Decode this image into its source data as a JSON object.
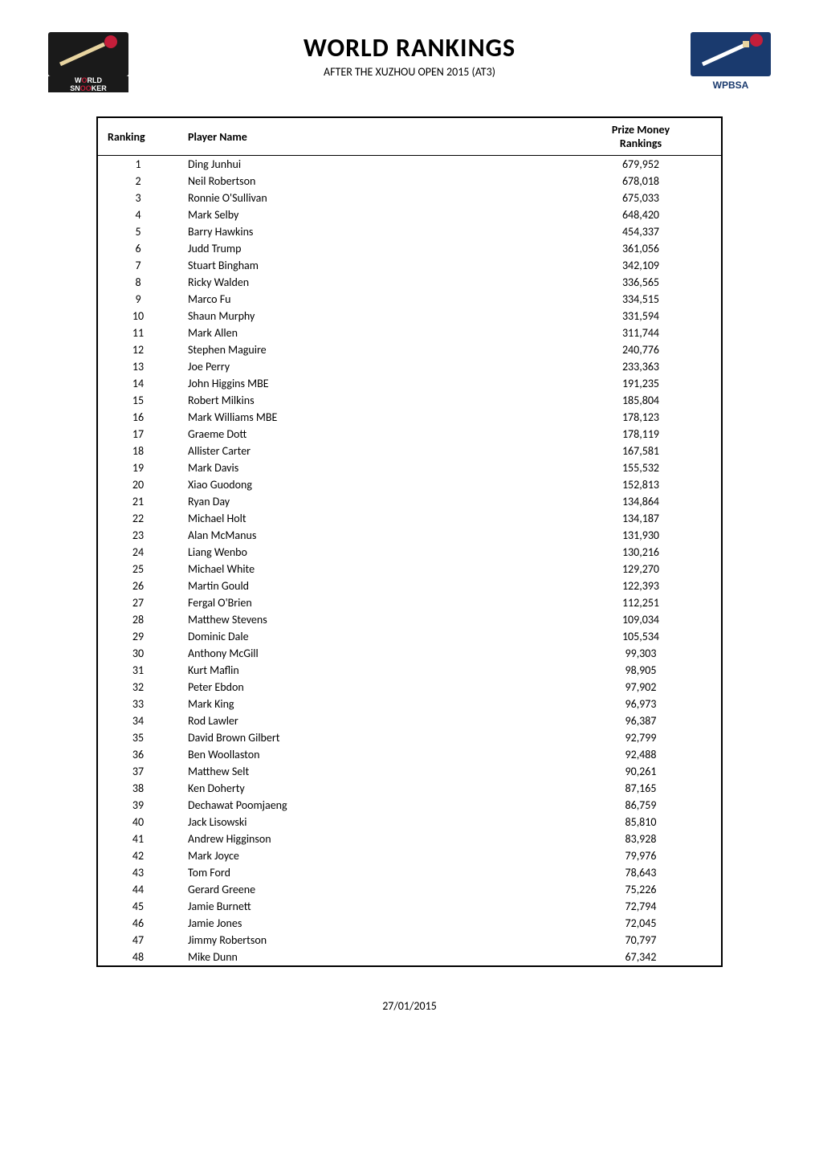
{
  "header": {
    "title": "WORLD RANKINGS",
    "subtitle": "AFTER THE XUZHOU OPEN 2015 (AT3)",
    "logo_left_text_top": "WORLD",
    "logo_left_text_bottom": "SNOOKER",
    "logo_right_text": "WPBSA"
  },
  "table": {
    "columns": [
      "Ranking",
      "Player Name",
      "Prize Money Rankings"
    ],
    "header_col3_line1": "Prize Money",
    "header_col3_line2": "Rankings",
    "rows": [
      [
        "1",
        "Ding Junhui",
        "679,952"
      ],
      [
        "2",
        "Neil Robertson",
        "678,018"
      ],
      [
        "3",
        "Ronnie O'Sullivan",
        "675,033"
      ],
      [
        "4",
        "Mark Selby",
        "648,420"
      ],
      [
        "5",
        "Barry Hawkins",
        "454,337"
      ],
      [
        "6",
        "Judd Trump",
        "361,056"
      ],
      [
        "7",
        "Stuart Bingham",
        "342,109"
      ],
      [
        "8",
        "Ricky Walden",
        "336,565"
      ],
      [
        "9",
        "Marco Fu",
        "334,515"
      ],
      [
        "10",
        "Shaun Murphy",
        "331,594"
      ],
      [
        "11",
        "Mark Allen",
        "311,744"
      ],
      [
        "12",
        "Stephen Maguire",
        "240,776"
      ],
      [
        "13",
        "Joe Perry",
        "233,363"
      ],
      [
        "14",
        "John Higgins MBE",
        "191,235"
      ],
      [
        "15",
        "Robert Milkins",
        "185,804"
      ],
      [
        "16",
        "Mark Williams MBE",
        "178,123"
      ],
      [
        "17",
        "Graeme Dott",
        "178,119"
      ],
      [
        "18",
        "Allister Carter",
        "167,581"
      ],
      [
        "19",
        "Mark Davis",
        "155,532"
      ],
      [
        "20",
        "Xiao Guodong",
        "152,813"
      ],
      [
        "21",
        "Ryan Day",
        "134,864"
      ],
      [
        "22",
        "Michael Holt",
        "134,187"
      ],
      [
        "23",
        "Alan McManus",
        "131,930"
      ],
      [
        "24",
        "Liang Wenbo",
        "130,216"
      ],
      [
        "25",
        "Michael White",
        "129,270"
      ],
      [
        "26",
        "Martin Gould",
        "122,393"
      ],
      [
        "27",
        "Fergal O'Brien",
        "112,251"
      ],
      [
        "28",
        "Matthew Stevens",
        "109,034"
      ],
      [
        "29",
        "Dominic Dale",
        "105,534"
      ],
      [
        "30",
        "Anthony McGill",
        "99,303"
      ],
      [
        "31",
        "Kurt Maflin",
        "98,905"
      ],
      [
        "32",
        "Peter Ebdon",
        "97,902"
      ],
      [
        "33",
        "Mark King",
        "96,973"
      ],
      [
        "34",
        "Rod Lawler",
        "96,387"
      ],
      [
        "35",
        "David Brown Gilbert",
        "92,799"
      ],
      [
        "36",
        "Ben Woollaston",
        "92,488"
      ],
      [
        "37",
        "Matthew Selt",
        "90,261"
      ],
      [
        "38",
        "Ken Doherty",
        "87,165"
      ],
      [
        "39",
        "Dechawat Poomjaeng",
        "86,759"
      ],
      [
        "40",
        "Jack Lisowski",
        "85,810"
      ],
      [
        "41",
        "Andrew Higginson",
        "83,928"
      ],
      [
        "42",
        "Mark Joyce",
        "79,976"
      ],
      [
        "43",
        "Tom Ford",
        "78,643"
      ],
      [
        "44",
        "Gerard Greene",
        "75,226"
      ],
      [
        "45",
        "Jamie Burnett",
        "72,794"
      ],
      [
        "46",
        "Jamie Jones",
        "72,045"
      ],
      [
        "47",
        "Jimmy Robertson",
        "70,797"
      ],
      [
        "48",
        "Mike Dunn",
        "67,342"
      ]
    ]
  },
  "footer": {
    "date": "27/01/2015"
  },
  "colors": {
    "logo_left_bg_top": "#1a1a1a",
    "logo_left_ball": "#c41e3a",
    "logo_left_cue": "#e8d4a0",
    "logo_left_text_bg": "#1a1a1a",
    "logo_left_text_highlight": "#c41e3a",
    "logo_right_bg": "#1a3a6e",
    "logo_right_ball": "#c41e3a",
    "logo_right_cue_tip": "#e8d4a0",
    "border_color": "#000000",
    "text_color": "#000000",
    "background": "#ffffff"
  }
}
